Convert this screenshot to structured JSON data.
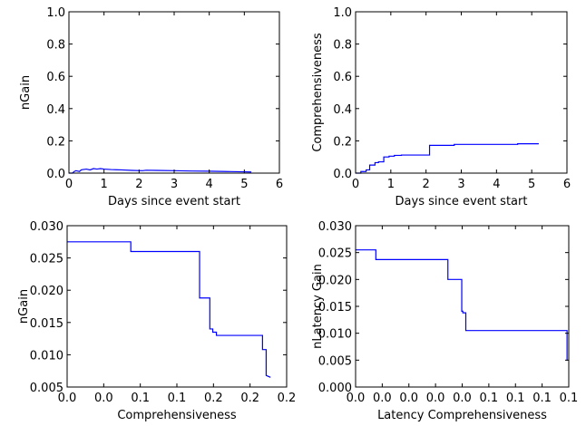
{
  "chart_data": [
    {
      "type": "line",
      "title": "",
      "xlabel": "Days since event start",
      "ylabel": "nGain",
      "xlim": [
        0,
        6
      ],
      "ylim": [
        0.0,
        1.0
      ],
      "xticks": [
        0,
        1,
        2,
        3,
        4,
        5,
        6
      ],
      "xtick_labels": [
        "0",
        "1",
        "2",
        "3",
        "4",
        "5",
        "6"
      ],
      "yticks": [
        0.0,
        0.2,
        0.4,
        0.6,
        0.8,
        1.0
      ],
      "ytick_labels": [
        "0.0",
        "0.2",
        "0.4",
        "0.6",
        "0.8",
        "1.0"
      ],
      "grid": false,
      "series": [
        {
          "color": "#0000ff",
          "x": [
            0.0,
            0.1,
            0.15,
            0.2,
            0.3,
            0.35,
            0.4,
            0.5,
            0.6,
            0.7,
            0.8,
            0.9,
            1.0,
            1.2,
            1.5,
            1.8,
            2.1,
            2.2,
            2.5,
            3.0,
            3.5,
            4.0,
            4.5,
            5.0,
            5.2
          ],
          "y": [
            0.0,
            0.0,
            0.01,
            0.015,
            0.01,
            0.02,
            0.022,
            0.025,
            0.02,
            0.028,
            0.025,
            0.028,
            0.025,
            0.022,
            0.02,
            0.017,
            0.015,
            0.018,
            0.017,
            0.015,
            0.013,
            0.012,
            0.01,
            0.008,
            0.007
          ]
        }
      ]
    },
    {
      "type": "line",
      "title": "",
      "xlabel": "Days since event start",
      "ylabel": "Comprehensiveness",
      "xlim": [
        0,
        6
      ],
      "ylim": [
        0.0,
        1.0
      ],
      "xticks": [
        0,
        1,
        2,
        3,
        4,
        5,
        6
      ],
      "xtick_labels": [
        "0",
        "1",
        "2",
        "3",
        "4",
        "5",
        "6"
      ],
      "yticks": [
        0.0,
        0.2,
        0.4,
        0.6,
        0.8,
        1.0
      ],
      "ytick_labels": [
        "0.0",
        "0.2",
        "0.4",
        "0.6",
        "0.8",
        "1.0"
      ],
      "grid": false,
      "series": [
        {
          "color": "#0000ff",
          "x": [
            0.0,
            0.15,
            0.15,
            0.3,
            0.3,
            0.4,
            0.4,
            0.55,
            0.55,
            0.65,
            0.65,
            0.8,
            0.8,
            0.95,
            0.95,
            1.1,
            1.1,
            1.3,
            1.3,
            2.1,
            2.1,
            2.8,
            2.8,
            4.6,
            4.6,
            5.2
          ],
          "y": [
            0.0,
            0.0,
            0.01,
            0.01,
            0.02,
            0.02,
            0.05,
            0.05,
            0.065,
            0.065,
            0.07,
            0.07,
            0.1,
            0.1,
            0.105,
            0.105,
            0.11,
            0.11,
            0.112,
            0.112,
            0.172,
            0.172,
            0.178,
            0.178,
            0.182,
            0.182
          ]
        }
      ]
    },
    {
      "type": "line",
      "title": "",
      "xlabel": "Comprehensiveness",
      "ylabel": "nGain",
      "xlim": [
        0.0,
        0.3
      ],
      "ylim": [
        0.005,
        0.03
      ],
      "xticks": [
        0.0,
        0.05,
        0.1,
        0.15,
        0.2,
        0.25,
        0.3
      ],
      "xtick_labels": [
        "0.0",
        "0.0",
        "0.1",
        "0.1",
        "0.2",
        "0.2",
        "0.2"
      ],
      "yticks": [
        0.005,
        0.01,
        0.015,
        0.02,
        0.025,
        0.03
      ],
      "ytick_labels": [
        "0.005",
        "0.010",
        "0.015",
        "0.020",
        "0.025",
        "0.030"
      ],
      "grid": false,
      "series": [
        {
          "color": "#0000ff",
          "x": [
            0.0,
            0.087,
            0.087,
            0.181,
            0.181,
            0.195,
            0.195,
            0.199,
            0.199,
            0.204,
            0.204,
            0.267,
            0.267,
            0.272,
            0.272,
            0.278
          ],
          "y": [
            0.0275,
            0.0275,
            0.026,
            0.026,
            0.0188,
            0.0188,
            0.014,
            0.014,
            0.0135,
            0.0135,
            0.013,
            0.013,
            0.0108,
            0.0108,
            0.0068,
            0.0065
          ]
        }
      ]
    },
    {
      "type": "line",
      "title": "",
      "xlabel": "Latency Comprehensiveness",
      "ylabel": "nLatency Gain",
      "xlim": [
        0.0,
        0.1
      ],
      "ylim": [
        0.0,
        0.03
      ],
      "xticks": [
        0.0,
        0.0125,
        0.025,
        0.0375,
        0.05,
        0.0625,
        0.075,
        0.0875,
        0.1
      ],
      "xtick_labels": [
        "0.0",
        "0.0",
        "0.0",
        "0.0",
        "0.0",
        "0.1",
        "0.1",
        "0.1",
        "0.1"
      ],
      "yticks": [
        0.0,
        0.005,
        0.01,
        0.015,
        0.02,
        0.025,
        0.03
      ],
      "ytick_labels": [
        "0.000",
        "0.005",
        "0.010",
        "0.015",
        "0.020",
        "0.025",
        "0.030"
      ],
      "grid": false,
      "series": [
        {
          "color": "#0000ff",
          "x": [
            0.0,
            0.0095,
            0.0095,
            0.0433,
            0.0433,
            0.0498,
            0.0498,
            0.0503,
            0.0503,
            0.0517,
            0.0517,
            0.0992,
            0.0992,
            0.0995
          ],
          "y": [
            0.0255,
            0.0255,
            0.0237,
            0.0237,
            0.02,
            0.02,
            0.0141,
            0.0141,
            0.0138,
            0.0138,
            0.0105,
            0.0105,
            0.005,
            0.005
          ]
        }
      ]
    }
  ]
}
